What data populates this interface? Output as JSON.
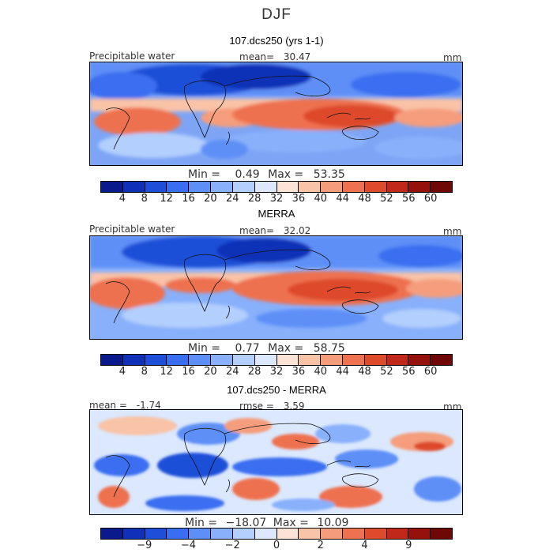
{
  "title": "DJF",
  "panels": [
    {
      "title": "107.dcs250 (yrs 1-1)",
      "label_left": "Precipitable water",
      "mean_label": "mean=",
      "mean_value": "30.47",
      "units": "mm",
      "min_label": "Min =",
      "min_value": "0.49",
      "max_label": "Max =",
      "max_value": "53.35"
    },
    {
      "title": "MERRA",
      "label_left": "Precipitable water",
      "mean_label": "mean=",
      "mean_value": "32.02",
      "units": "mm",
      "min_label": "Min =",
      "min_value": "0.77",
      "max_label": "Max =",
      "max_value": "58.75"
    },
    {
      "title": "107.dcs250 - MERRA",
      "label_left": "mean =",
      "mean_label": "",
      "mean_value": "-1.74",
      "rmse_label": "rmse =",
      "rmse_value": "3.59",
      "units": "mm",
      "min_label": "Min =",
      "min_value": "−18.07",
      "max_label": "Max =",
      "max_value": "10.09"
    }
  ],
  "colorbar_main": {
    "colors": [
      "#0a1a8c",
      "#1030b8",
      "#1f4fd8",
      "#3a6ef0",
      "#5d8ff7",
      "#88b0fb",
      "#b3cffd",
      "#dbe8fd",
      "#fde3d4",
      "#f9c3a7",
      "#f59d7b",
      "#ee7150",
      "#dd4a2c",
      "#c0281a",
      "#96100c",
      "#700707"
    ],
    "ticks": [
      "4",
      "8",
      "12",
      "16",
      "20",
      "24",
      "28",
      "32",
      "36",
      "40",
      "44",
      "48",
      "52",
      "56",
      "60"
    ]
  },
  "colorbar_diff": {
    "colors": [
      "#0a1a8c",
      "#1030b8",
      "#1f4fd8",
      "#3a6ef0",
      "#5d8ff7",
      "#88b0fb",
      "#b3cffd",
      "#dbe8fd",
      "#fde3d4",
      "#f9c3a7",
      "#f59d7b",
      "#ee7150",
      "#dd4a2c",
      "#c0281a",
      "#96100c",
      "#700707"
    ],
    "ticks": [
      "−9",
      "−4",
      "−2",
      "0",
      "2",
      "4",
      "9"
    ]
  }
}
